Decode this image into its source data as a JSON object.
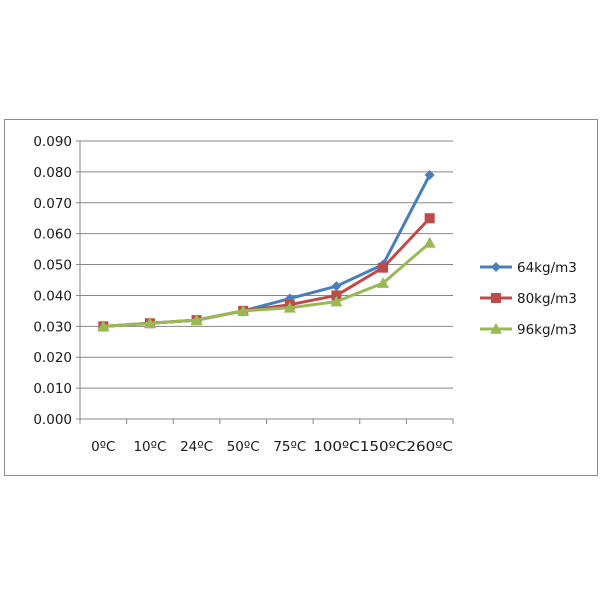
{
  "chart_data": {
    "type": "line",
    "categories": [
      "0ºC",
      "10ºC",
      "24ºC",
      "50ºC",
      "75ºC",
      "100ºC",
      "150ºC",
      "260ºC"
    ],
    "ylim": [
      0,
      0.09
    ],
    "yticks": [
      "0.000",
      "0.010",
      "0.020",
      "0.030",
      "0.040",
      "0.050",
      "0.060",
      "0.070",
      "0.080",
      "0.090"
    ],
    "grid": true,
    "legend_position": "right",
    "series": [
      {
        "name": "64kg/m3",
        "color": "#4a7ebb",
        "marker": "diamond",
        "values": [
          0.03,
          0.031,
          0.032,
          0.035,
          0.039,
          0.043,
          0.05,
          0.079
        ]
      },
      {
        "name": "80kg/m3",
        "color": "#be4b48",
        "marker": "square",
        "values": [
          0.03,
          0.031,
          0.032,
          0.035,
          0.037,
          0.04,
          0.049,
          0.065
        ]
      },
      {
        "name": "96kg/m3",
        "color": "#98b954",
        "marker": "triangle",
        "values": [
          0.03,
          0.031,
          0.032,
          0.035,
          0.036,
          0.038,
          0.044,
          0.057
        ]
      }
    ]
  }
}
